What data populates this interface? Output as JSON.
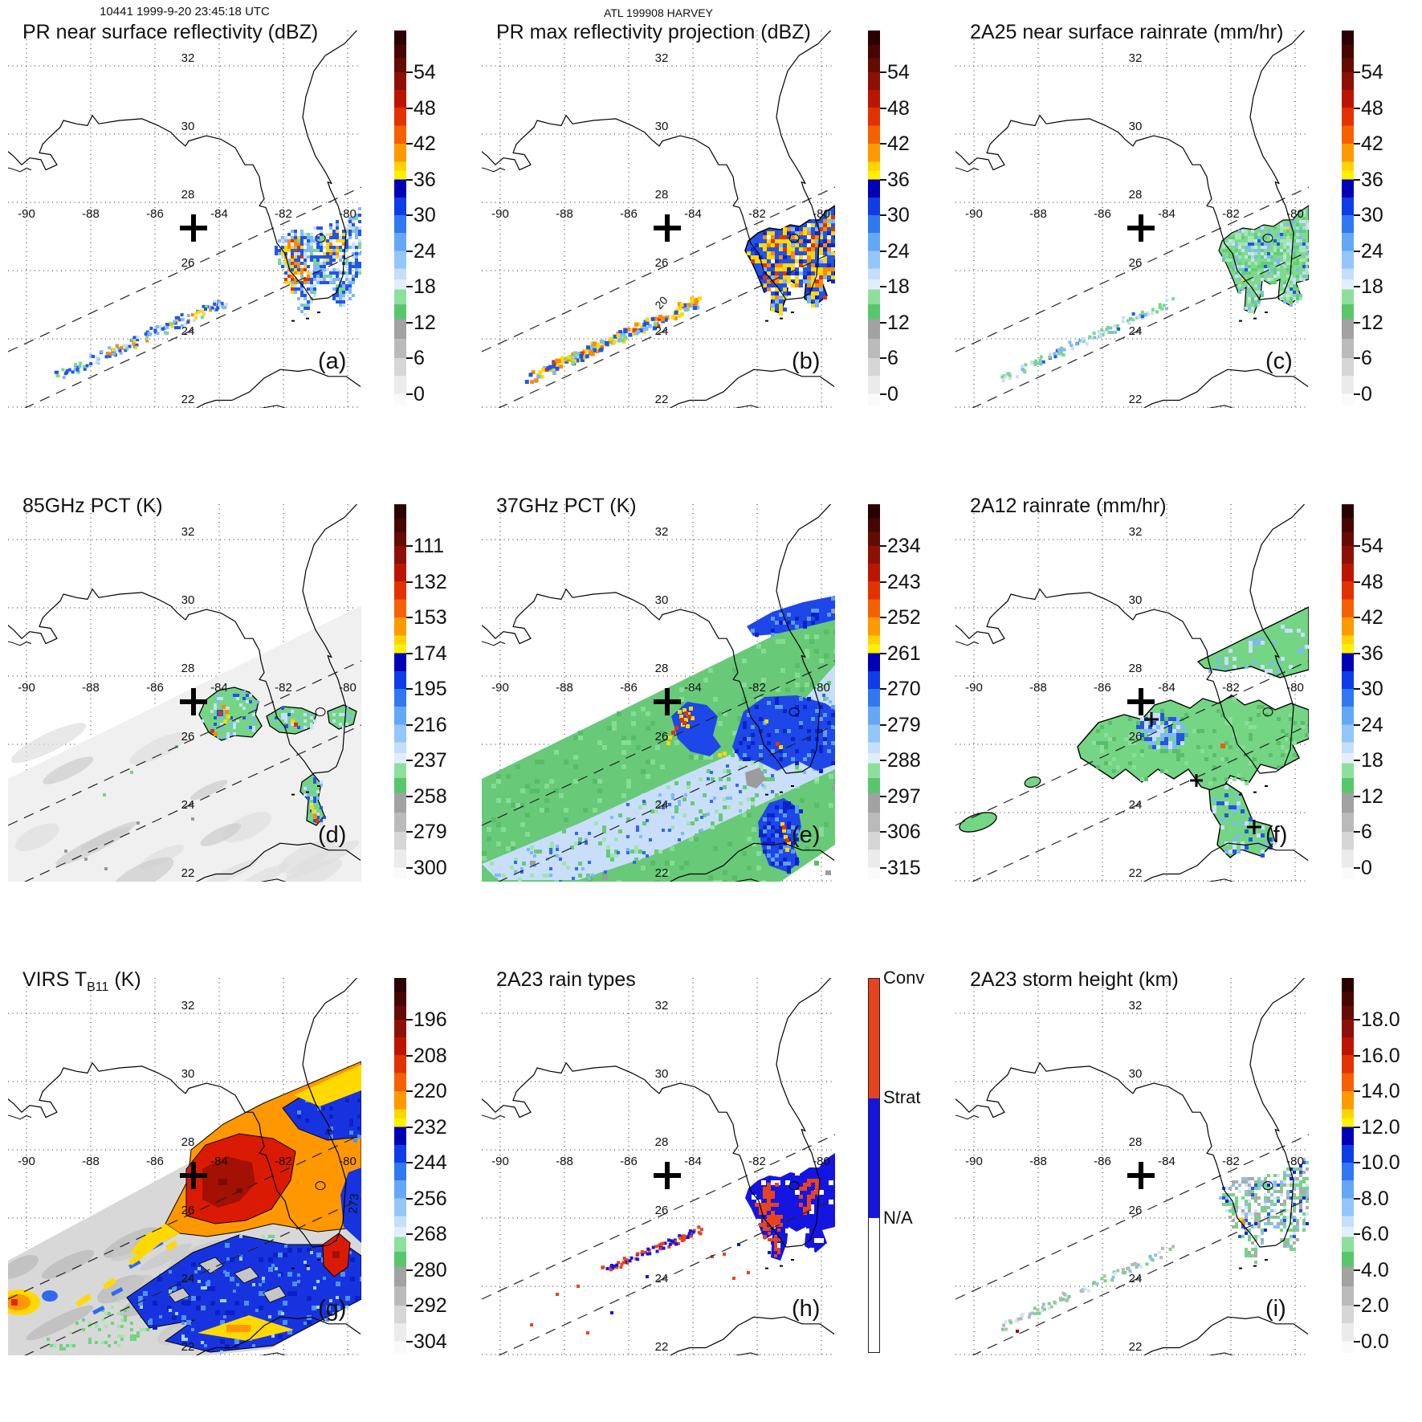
{
  "header": {
    "orbit_title": "10441 1999-9-20 23:45:18 UTC",
    "storm_title": "ATL 199908 HARVEY"
  },
  "map": {
    "lon_ticks": [
      "-90",
      "-88",
      "-86",
      "-84",
      "-82",
      "-80"
    ],
    "lat_ticks": [
      "32",
      "30",
      "28",
      "26",
      "24",
      "22"
    ]
  },
  "color_scale": {
    "gradient_stops": [
      [
        0.0,
        "#2a0000"
      ],
      [
        0.037,
        "#470500"
      ],
      [
        0.074,
        "#640b02"
      ],
      [
        0.111,
        "#8c1104"
      ],
      [
        0.158,
        "#bb1500"
      ],
      [
        0.206,
        "#e23200"
      ],
      [
        0.254,
        "#f56000"
      ],
      [
        0.302,
        "#fc9a00"
      ],
      [
        0.35,
        "#ffd400"
      ],
      [
        0.374,
        "#fff000"
      ],
      [
        0.397,
        "#0000b4"
      ],
      [
        0.445,
        "#0e3de8"
      ],
      [
        0.492,
        "#2f78f0"
      ],
      [
        0.54,
        "#64a8f5"
      ],
      [
        0.588,
        "#93c6f9"
      ],
      [
        0.635,
        "#c5defb"
      ],
      [
        0.664,
        "#e2eefd"
      ],
      [
        0.691,
        "#8ce09c"
      ],
      [
        0.73,
        "#58c76c"
      ],
      [
        0.77,
        "#a2a2a2"
      ],
      [
        0.822,
        "#bababa"
      ],
      [
        0.874,
        "#d6d6d6"
      ],
      [
        0.921,
        "#ebebeb"
      ],
      [
        0.969,
        "#fafafa"
      ]
    ]
  },
  "panels": [
    {
      "id": "a",
      "title": "PR near surface reflectivity (dBZ)",
      "letter": "(a)",
      "colorbar": {
        "type": "gradient",
        "ticks": [
          "54",
          "48",
          "42",
          "36",
          "30",
          "24",
          "18",
          "12",
          "6",
          "0"
        ]
      }
    },
    {
      "id": "b",
      "title": "PR max reflectivity projection (dBZ)",
      "letter": "(b)",
      "contour_label": "20",
      "colorbar": {
        "type": "gradient",
        "ticks": [
          "54",
          "48",
          "42",
          "36",
          "30",
          "24",
          "18",
          "12",
          "6",
          "0"
        ]
      }
    },
    {
      "id": "c",
      "title": "2A25 near surface rainrate (mm/hr)",
      "letter": "(c)",
      "colorbar": {
        "type": "gradient",
        "ticks": [
          "54",
          "48",
          "42",
          "36",
          "30",
          "24",
          "18",
          "12",
          "6",
          "0"
        ]
      }
    },
    {
      "id": "d",
      "title": "85GHz PCT (K)",
      "letter": "(d)",
      "colorbar": {
        "type": "gradient",
        "ticks": [
          "111",
          "132",
          "153",
          "174",
          "195",
          "216",
          "237",
          "258",
          "279",
          "300"
        ]
      }
    },
    {
      "id": "e",
      "title": "37GHz PCT (K)",
      "letter": "(e)",
      "colorbar": {
        "type": "gradient",
        "ticks": [
          "234",
          "243",
          "252",
          "261",
          "270",
          "279",
          "288",
          "297",
          "306",
          "315"
        ]
      }
    },
    {
      "id": "f",
      "title": "2A12 rainrate (mm/hr)",
      "letter": "(f)",
      "colorbar": {
        "type": "gradient",
        "ticks": [
          "54",
          "48",
          "42",
          "36",
          "30",
          "24",
          "18",
          "12",
          "6",
          "0"
        ]
      }
    },
    {
      "id": "g",
      "title": "VIRS TB11 (K)",
      "title_parts": {
        "pre": "VIRS T",
        "sub": "B11",
        "post": " (K)"
      },
      "letter": "(g)",
      "contour_label": "273",
      "colorbar": {
        "type": "gradient",
        "ticks": [
          "196",
          "208",
          "220",
          "232",
          "244",
          "256",
          "268",
          "280",
          "292",
          "304"
        ]
      }
    },
    {
      "id": "h",
      "title": "2A23 rain types",
      "letter": "(h)",
      "colorbar": {
        "type": "categories",
        "categories": [
          {
            "label": "Conv",
            "color": "#e8431c"
          },
          {
            "label": "Strat",
            "color": "#1515e2"
          },
          {
            "label": "N/A",
            "color": "#ffffff"
          }
        ]
      }
    },
    {
      "id": "i",
      "title": "2A23 storm height (km)",
      "letter": "(i)",
      "colorbar": {
        "type": "gradient",
        "ticks": [
          "18.0",
          "16.0",
          "14.0",
          "12.0",
          "10.0",
          "8.0",
          "6.0",
          "4.0",
          "2.0",
          "0.0"
        ]
      }
    }
  ]
}
